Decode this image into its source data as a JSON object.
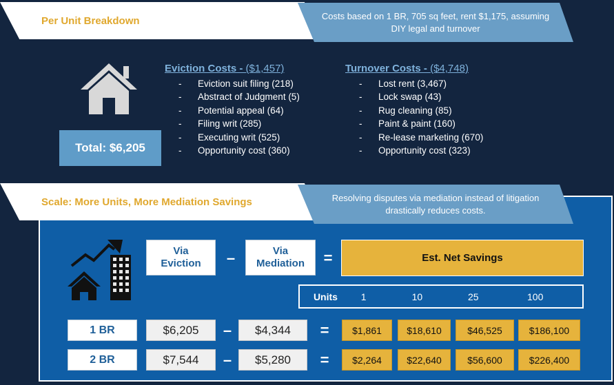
{
  "section1": {
    "title": "Per Unit Breakdown",
    "note": "Costs based on 1 BR, 705 sq feet, rent $1,175, assuming DIY legal and turnover",
    "total": "Total: $6,205",
    "eviction": {
      "heading": "Eviction Costs - ",
      "amount": "($1,457)",
      "items": [
        "Eviction suit filing (218)",
        "Abstract of Judgment (5)",
        "Potential appeal (64)",
        "Filing writ (285)",
        "Executing writ (525)",
        "Opportunity cost (360)"
      ]
    },
    "turnover": {
      "heading": "Turnover Costs - ",
      "amount": "($4,748)",
      "items": [
        "Lost rent (3,467)",
        "Lock swap (43)",
        "Rug cleaning (85)",
        "Paint & paint (160)",
        "Re-lease marketing (670)",
        "Opportunity cost (323)"
      ]
    }
  },
  "section2": {
    "title": "Scale: More Units, More Mediation Savings",
    "note": "Resolving disputes via mediation instead of litigation drastically reduces costs.",
    "via_eviction": "Via\nEviction",
    "via_mediation": "Via\nMediation",
    "minus": "–",
    "equals": "=",
    "est_net_savings": "Est. Net Savings",
    "units_label": "Units",
    "units": [
      "1",
      "10",
      "25",
      "100"
    ],
    "rows": [
      {
        "label": "1 BR",
        "eviction": "$6,205",
        "mediation": "$4,344",
        "savings": [
          "$1,861",
          "$18,610",
          "$46,525",
          "$186,100"
        ]
      },
      {
        "label": "2 BR",
        "eviction": "$7,544",
        "mediation": "$5,280",
        "savings": [
          "$2,264",
          "$22,640",
          "$56,600",
          "$226,400"
        ]
      }
    ]
  },
  "colors": {
    "navy": "#13253f",
    "panel_blue": "#0f5ea6",
    "light_blue": "#6a9ec6",
    "gold": "#e6b33c",
    "orange_text": "#e0a82e"
  },
  "icons": [
    "house-icon",
    "growth-chart-icon",
    "building-icon"
  ]
}
